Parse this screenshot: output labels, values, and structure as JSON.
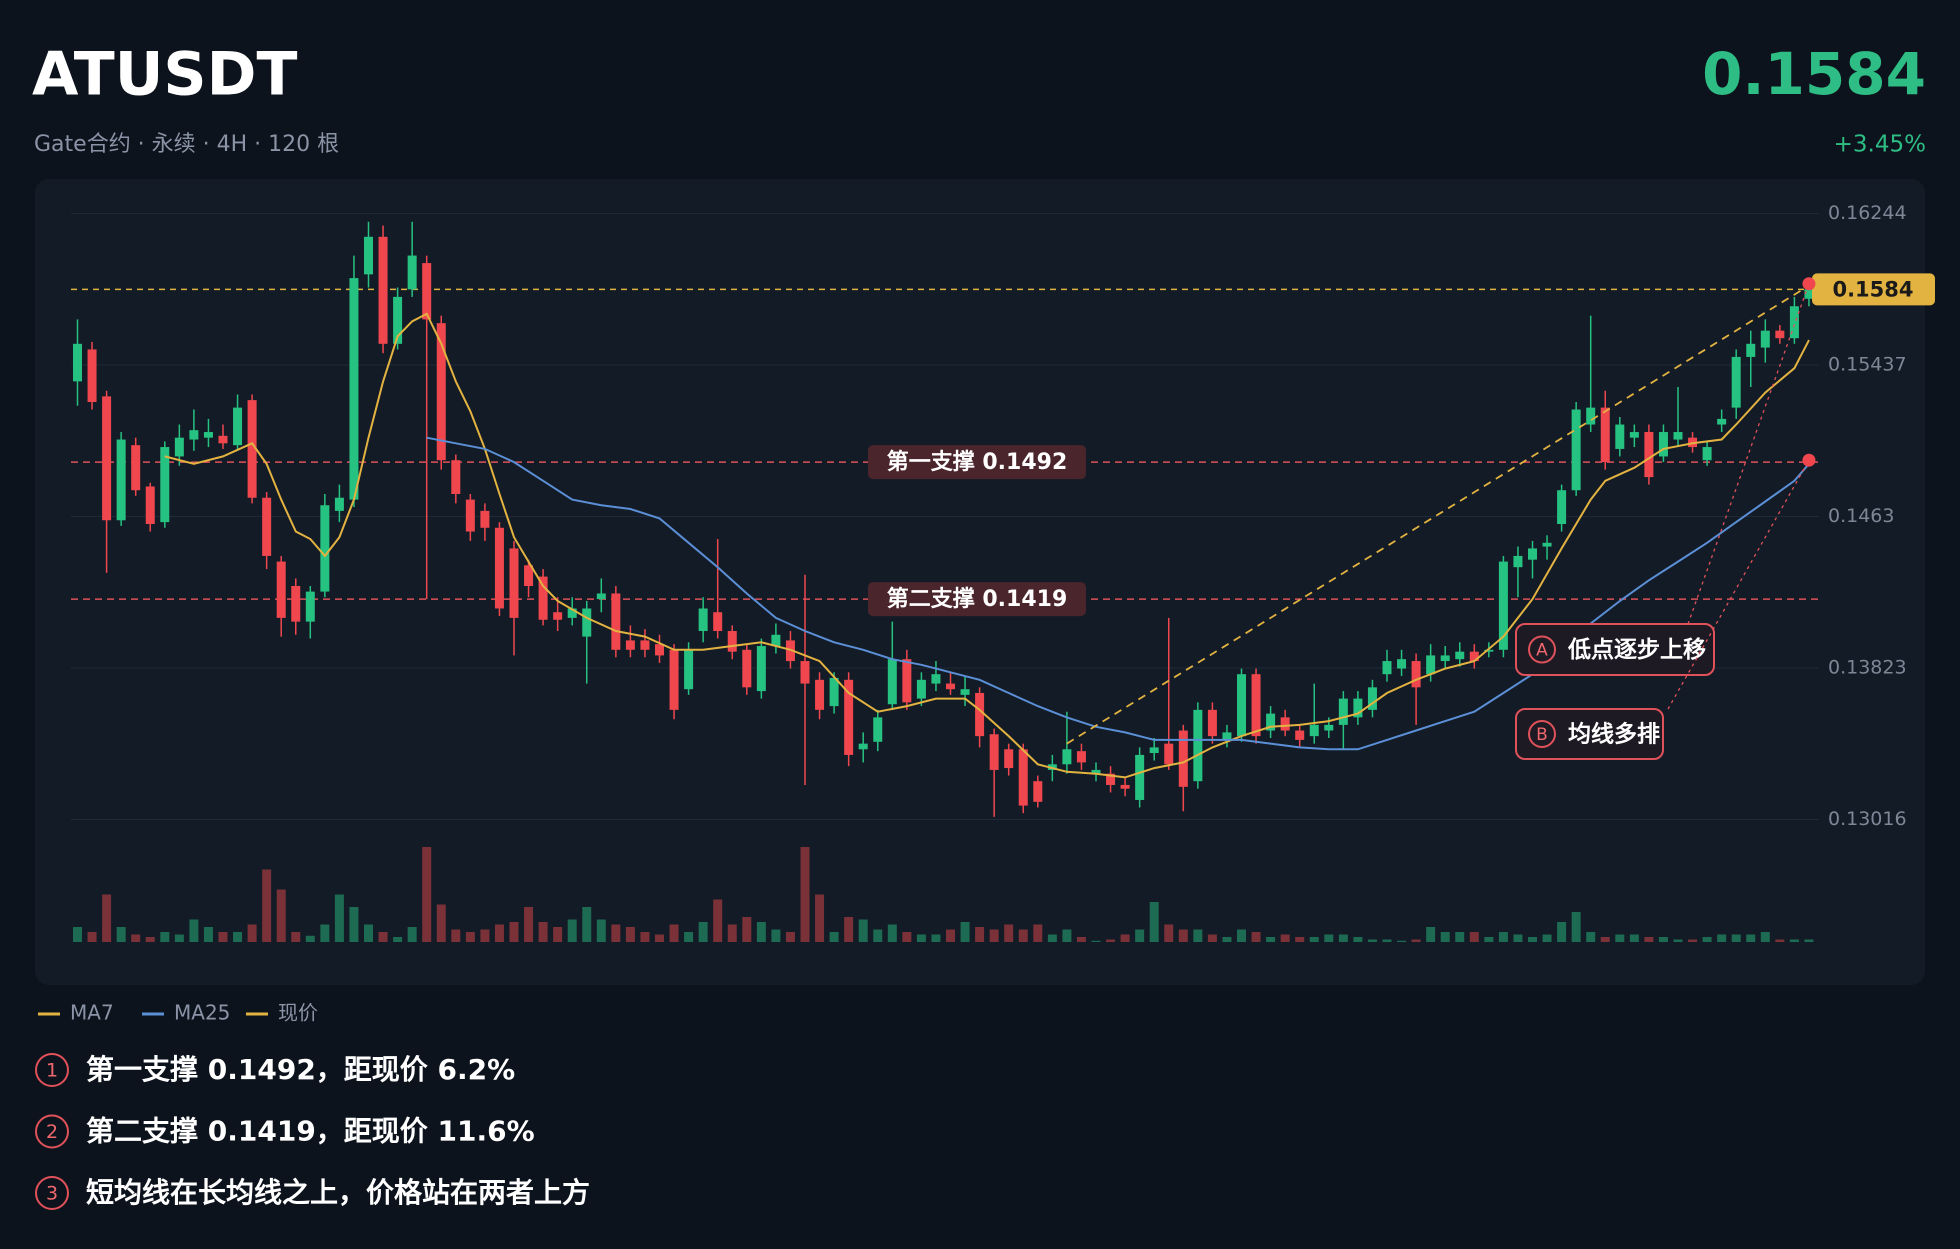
{
  "header": {
    "symbol": "ATUSDT",
    "subtitle": "Gate合约 · 永续 · 4H · 120 根",
    "price": "0.1584",
    "change": "+3.45%"
  },
  "chart_data": {
    "type": "candlestick",
    "up_color": "#26c281",
    "down_color": "#f0474f",
    "volume_up_color": "#1d6b52",
    "volume_down_color": "#7a3138",
    "ylim": [
      0.1296,
      0.1638
    ],
    "yticks": [
      0.16244,
      0.15437,
      0.1463,
      0.13823,
      0.13016
    ],
    "grid": true,
    "open": [
      0.1535,
      0.1552,
      0.1527,
      0.1461,
      0.1501,
      0.1479,
      0.146,
      0.1495,
      0.1504,
      0.1505,
      0.1506,
      0.1501,
      0.1525,
      0.1473,
      0.1439,
      0.1426,
      0.1407,
      0.1423,
      0.1466,
      0.1472,
      0.1592,
      0.1612,
      0.1555,
      0.1584,
      0.1598,
      0.1566,
      0.1493,
      0.1472,
      0.1466,
      0.1457,
      0.1446,
      0.1437,
      0.1431,
      0.1412,
      0.1409,
      0.1399,
      0.1419,
      0.1422,
      0.1397,
      0.1397,
      0.1395,
      0.1392,
      0.1371,
      0.1402,
      0.1412,
      0.1402,
      0.1392,
      0.137,
      0.1394,
      0.1397,
      0.1386,
      0.1376,
      0.1362,
      0.1376,
      0.1339,
      0.1343,
      0.1363,
      0.1387,
      0.1366,
      0.1374,
      0.1374,
      0.1368,
      0.1369,
      0.1347,
      0.1339,
      0.1339,
      0.1322,
      0.1328,
      0.1331,
      0.1338,
      0.1326,
      0.1326,
      0.132,
      0.1312,
      0.1337,
      0.1342,
      0.1349,
      0.1322,
      0.136,
      0.1344,
      0.1346,
      0.1379,
      0.1349,
      0.1356,
      0.1349,
      0.1346,
      0.1349,
      0.1352,
      0.1356,
      0.136,
      0.1379,
      0.1382,
      0.1386,
      0.1379,
      0.1386,
      0.1387,
      0.1391,
      0.1391,
      0.1392,
      0.1436,
      0.144,
      0.1447,
      0.1459,
      0.1477,
      0.1512,
      0.1521,
      0.1499,
      0.1505,
      0.1508,
      0.1495,
      0.1504,
      0.1505,
      0.1493,
      0.1512,
      0.1521,
      0.1548,
      0.1553,
      0.1562,
      0.1558,
      0.1579
    ],
    "high": [
      0.1568,
      0.1556,
      0.153,
      0.1508,
      0.1505,
      0.1481,
      0.1503,
      0.1512,
      0.152,
      0.1515,
      0.1512,
      0.1528,
      0.1528,
      0.1476,
      0.1442,
      0.143,
      0.1426,
      0.1475,
      0.148,
      0.1602,
      0.162,
      0.1618,
      0.1585,
      0.162,
      0.1602,
      0.157,
      0.1496,
      0.1475,
      0.147,
      0.146,
      0.145,
      0.144,
      0.1435,
      0.142,
      0.142,
      0.1418,
      0.143,
      0.1426,
      0.1405,
      0.1403,
      0.14,
      0.1395,
      0.1396,
      0.142,
      0.1451,
      0.1405,
      0.1395,
      0.1398,
      0.1406,
      0.1402,
      0.1432,
      0.138,
      0.138,
      0.138,
      0.1348,
      0.136,
      0.1407,
      0.1392,
      0.138,
      0.1386,
      0.138,
      0.1378,
      0.1372,
      0.135,
      0.1342,
      0.1342,
      0.1325,
      0.1336,
      0.1359,
      0.1342,
      0.1332,
      0.133,
      0.1324,
      0.134,
      0.1345,
      0.1409,
      0.1352,
      0.1364,
      0.1364,
      0.1352,
      0.1382,
      0.1382,
      0.1362,
      0.136,
      0.1352,
      0.1374,
      0.1356,
      0.137,
      0.137,
      0.1376,
      0.1392,
      0.1392,
      0.139,
      0.1395,
      0.1394,
      0.1396,
      0.1395,
      0.1396,
      0.1442,
      0.1447,
      0.145,
      0.1453,
      0.148,
      0.1524,
      0.157,
      0.153,
      0.1516,
      0.1512,
      0.1512,
      0.1512,
      0.1532,
      0.1508,
      0.1503,
      0.152,
      0.1552,
      0.1562,
      0.1568,
      0.1565,
      0.158,
      0.1588
    ],
    "low": [
      0.1522,
      0.152,
      0.1433,
      0.1458,
      0.1474,
      0.1455,
      0.1457,
      0.149,
      0.1498,
      0.15,
      0.1499,
      0.1498,
      0.147,
      0.1435,
      0.1399,
      0.14,
      0.1398,
      0.142,
      0.146,
      0.1468,
      0.1585,
      0.155,
      0.1552,
      0.158,
      0.1419,
      0.1488,
      0.147,
      0.145,
      0.145,
      0.141,
      0.1389,
      0.142,
      0.1405,
      0.1402,
      0.1405,
      0.1374,
      0.1412,
      0.1388,
      0.1388,
      0.1388,
      0.1385,
      0.1355,
      0.1368,
      0.1396,
      0.1398,
      0.1387,
      0.1368,
      0.1366,
      0.139,
      0.1382,
      0.132,
      0.1355,
      0.1358,
      0.133,
      0.1332,
      0.1338,
      0.136,
      0.136,
      0.1362,
      0.137,
      0.1368,
      0.1362,
      0.134,
      0.1303,
      0.1325,
      0.1305,
      0.1308,
      0.1322,
      0.1326,
      0.1328,
      0.1322,
      0.1316,
      0.1314,
      0.1308,
      0.1333,
      0.1328,
      0.1306,
      0.1318,
      0.1342,
      0.134,
      0.1343,
      0.1342,
      0.1345,
      0.1346,
      0.134,
      0.1342,
      0.1345,
      0.1339,
      0.1352,
      0.1356,
      0.1375,
      0.1378,
      0.1352,
      0.1375,
      0.1382,
      0.1383,
      0.1382,
      0.1388,
      0.1388,
      0.142,
      0.143,
      0.144,
      0.1455,
      0.1474,
      0.1508,
      0.1488,
      0.1495,
      0.15,
      0.148,
      0.1492,
      0.15,
      0.1497,
      0.149,
      0.1508,
      0.1515,
      0.1532,
      0.1545,
      0.1555,
      0.1555,
      0.1575
    ],
    "close": [
      0.1555,
      0.1524,
      0.1461,
      0.1504,
      0.1477,
      0.1459,
      0.15,
      0.1505,
      0.1509,
      0.1508,
      0.1502,
      0.1521,
      0.1473,
      0.1442,
      0.1409,
      0.1407,
      0.1423,
      0.1469,
      0.1473,
      0.159,
      0.1612,
      0.1555,
      0.158,
      0.1602,
      0.1568,
      0.1493,
      0.1475,
      0.1455,
      0.1457,
      0.1414,
      0.1409,
      0.1426,
      0.1408,
      0.1408,
      0.1414,
      0.1414,
      0.1422,
      0.1392,
      0.1392,
      0.1392,
      0.1389,
      0.136,
      0.1392,
      0.1414,
      0.1402,
      0.1391,
      0.1372,
      0.1394,
      0.14,
      0.1386,
      0.1374,
      0.136,
      0.1377,
      0.1336,
      0.1342,
      0.1356,
      0.1387,
      0.1364,
      0.1376,
      0.1379,
      0.1371,
      0.1371,
      0.1346,
      0.1328,
      0.1329,
      0.1309,
      0.1311,
      0.1331,
      0.1339,
      0.1332,
      0.1328,
      0.132,
      0.1318,
      0.1336,
      0.134,
      0.1331,
      0.1319,
      0.136,
      0.1346,
      0.1348,
      0.1379,
      0.1346,
      0.1358,
      0.1349,
      0.1344,
      0.1352,
      0.1352,
      0.1366,
      0.1366,
      0.1372,
      0.1386,
      0.1387,
      0.1372,
      0.1389,
      0.1389,
      0.1391,
      0.1386,
      0.1392,
      0.1439,
      0.1442,
      0.1446,
      0.1449,
      0.1477,
      0.152,
      0.1521,
      0.1492,
      0.1512,
      0.1508,
      0.1484,
      0.1508,
      0.1508,
      0.15,
      0.15,
      0.1515,
      0.1548,
      0.1555,
      0.1562,
      0.1558,
      0.1575,
      0.1584
    ],
    "volume": [
      12,
      8,
      38,
      12,
      6,
      4,
      8,
      6,
      18,
      12,
      8,
      8,
      14,
      58,
      42,
      8,
      5,
      14,
      38,
      28,
      14,
      8,
      4,
      12,
      76,
      30,
      10,
      8,
      10,
      14,
      16,
      28,
      16,
      12,
      18,
      28,
      18,
      14,
      12,
      8,
      6,
      14,
      8,
      16,
      34,
      14,
      20,
      16,
      10,
      8,
      76,
      38,
      8,
      20,
      18,
      10,
      14,
      8,
      6,
      6,
      10,
      16,
      12,
      10,
      14,
      10,
      14,
      6,
      10,
      4,
      1,
      2,
      6,
      10,
      32,
      14,
      10,
      10,
      6,
      4,
      10,
      8,
      4,
      6,
      4,
      4,
      6,
      6,
      4,
      2,
      2,
      1,
      2,
      12,
      8,
      8,
      8,
      4,
      8,
      6,
      4,
      6,
      16,
      24,
      8,
      4,
      6,
      6,
      4,
      4,
      2,
      2,
      4,
      6,
      6,
      6,
      8,
      2,
      2,
      2
    ],
    "series": [
      {
        "name": "MA7",
        "color": "#e3b341",
        "x": [
          6,
          8,
          10,
          12,
          13,
          14,
          15,
          16,
          17,
          18,
          19,
          20,
          21,
          22,
          23,
          24,
          25,
          26,
          27,
          28,
          29,
          30,
          31,
          32,
          33,
          35,
          37,
          39,
          41,
          43,
          45,
          47,
          49,
          51,
          53,
          55,
          57,
          59,
          61,
          62,
          64,
          66,
          68,
          70,
          72,
          74,
          76,
          78,
          80,
          82,
          84,
          86,
          88,
          90,
          92,
          94,
          96,
          98,
          100,
          102,
          104,
          105,
          107,
          109,
          111,
          113,
          114,
          116,
          118,
          119
        ],
        "values": [
          0.1495,
          0.1491,
          0.1495,
          0.1502,
          0.1491,
          0.1472,
          0.1455,
          0.1451,
          0.1442,
          0.1452,
          0.1472,
          0.1505,
          0.1535,
          0.1559,
          0.1567,
          0.1571,
          0.1555,
          0.1535,
          0.1519,
          0.1499,
          0.1475,
          0.1452,
          0.1439,
          0.1426,
          0.1418,
          0.1409,
          0.1402,
          0.1399,
          0.1392,
          0.1392,
          0.1394,
          0.1396,
          0.1392,
          0.1386,
          0.1369,
          0.1359,
          0.1362,
          0.1366,
          0.1366,
          0.136,
          0.1346,
          0.1331,
          0.1327,
          0.1326,
          0.1324,
          0.1329,
          0.1332,
          0.134,
          0.1346,
          0.1351,
          0.1352,
          0.1354,
          0.1358,
          0.1369,
          0.1376,
          0.1382,
          0.1386,
          0.1399,
          0.1419,
          0.1446,
          0.1472,
          0.1482,
          0.1489,
          0.1499,
          0.1502,
          0.1504,
          0.1512,
          0.1529,
          0.1542,
          0.1557
        ]
      },
      {
        "name": "MA25",
        "color": "#5b8fd6",
        "x": [
          24,
          26,
          28,
          30,
          32,
          34,
          36,
          38,
          40,
          42,
          44,
          46,
          48,
          50,
          52,
          54,
          56,
          58,
          60,
          62,
          64,
          66,
          68,
          70,
          72,
          74,
          76,
          78,
          80,
          82,
          84,
          86,
          88,
          90,
          92,
          94,
          96,
          98,
          100,
          102,
          104,
          106,
          108,
          110,
          112,
          114,
          116,
          118,
          119
        ],
        "values": [
          0.1505,
          0.1502,
          0.1499,
          0.1492,
          0.1482,
          0.1472,
          0.1469,
          0.1467,
          0.1462,
          0.1449,
          0.1436,
          0.1422,
          0.1409,
          0.1402,
          0.1396,
          0.1392,
          0.1387,
          0.1384,
          0.138,
          0.1376,
          0.1369,
          0.1362,
          0.1356,
          0.1351,
          0.1348,
          0.1344,
          0.1344,
          0.1344,
          0.1344,
          0.1342,
          0.134,
          0.1339,
          0.1339,
          0.1344,
          0.1349,
          0.1354,
          0.1359,
          0.1369,
          0.1379,
          0.1394,
          0.1406,
          0.1418,
          0.1429,
          0.1439,
          0.1449,
          0.146,
          0.1471,
          0.1482,
          0.1491
        ]
      }
    ],
    "current_price": {
      "name": "现价",
      "value": 0.1584,
      "color": "#e3b341"
    },
    "support_lines": [
      {
        "label": "第一支撑 0.1492",
        "value": 0.1492
      },
      {
        "label": "第二支撑 0.1419",
        "value": 0.1419
      }
    ],
    "trendline": {
      "x": [
        68,
        119
      ],
      "values": [
        0.1342,
        0.1586
      ]
    },
    "annotations": [
      {
        "marker": "A",
        "text": "低点逐步上移",
        "target": 0.1587
      },
      {
        "marker": "B",
        "text": "均线多排",
        "target": 0.1493
      }
    ]
  },
  "notes": [
    {
      "marker": "1",
      "text": "第一支撑 0.1492，距现价 6.2%"
    },
    {
      "marker": "2",
      "text": "第二支撑 0.1419，距现价 11.6%"
    },
    {
      "marker": "3",
      "text": "短均线在长均线之上，价格站在两者上方"
    }
  ]
}
